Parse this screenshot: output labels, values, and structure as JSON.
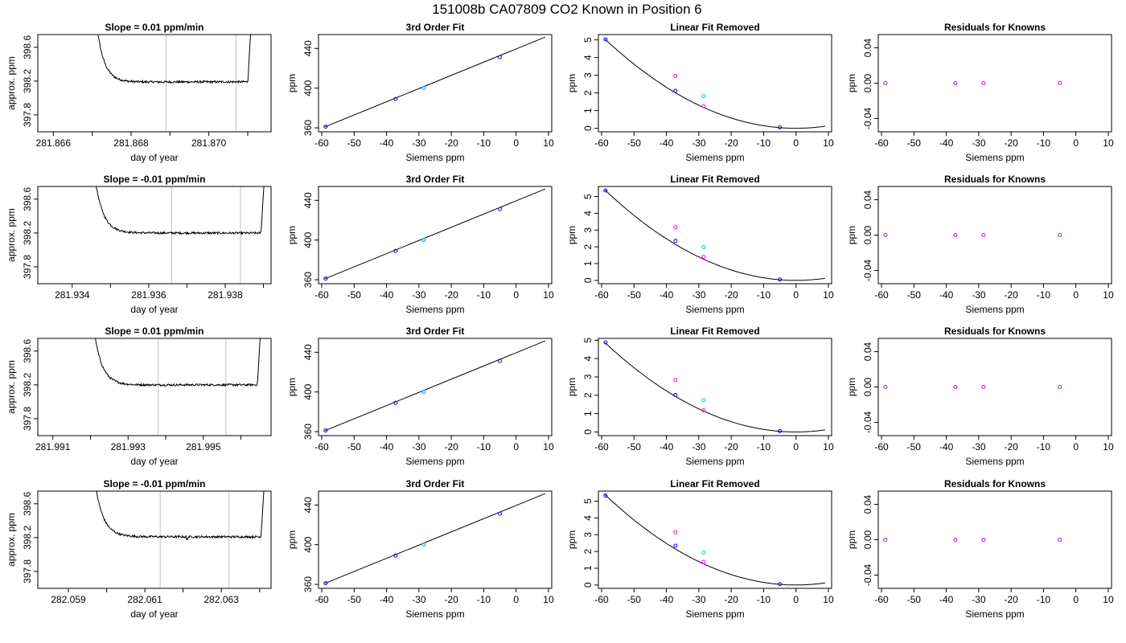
{
  "figure_title": "151008b     CA07809   CO2 Known in Position  6",
  "colors": {
    "curve": "#000000",
    "gridline": "#c0c0c0",
    "blue": "#0000ff",
    "magenta": "#ff00ff",
    "cyan": "#00c8dc",
    "purple": "#9020ff",
    "red": "#ff0000"
  },
  "chart_data": [
    {
      "id": "r1-slope",
      "type": "line",
      "title": "Slope =  0.01  ppm/min",
      "xlabel": "day of year",
      "ylabel": "approx. ppm",
      "xlim": [
        281.8656,
        281.8716
      ],
      "ylim": [
        397.6,
        398.75
      ],
      "xticks": [
        281.866,
        281.867,
        281.868,
        281.869,
        281.87,
        281.871
      ],
      "xtick_labels": [
        "281.866",
        "",
        "281.868",
        "",
        "281.870",
        ""
      ],
      "yticks": [
        397.8,
        398.2,
        398.6
      ],
      "ytick_labels": [
        "397.8",
        "398.2",
        "398.6"
      ],
      "vlines": [
        281.8689,
        281.8707
      ],
      "base": 398.19,
      "drift": 0.01,
      "dips": [],
      "trace_start": 281.86695,
      "trace_end": 281.87115
    },
    {
      "id": "r1-fit",
      "type": "scatter",
      "title": "3rd Order Fit",
      "xlabel": "Siemens ppm",
      "ylabel": "ppm",
      "xlim": [
        -61,
        11
      ],
      "ylim": [
        356,
        454
      ],
      "xticks": [
        -60,
        -50,
        -40,
        -30,
        -20,
        -10,
        0,
        10
      ],
      "xtick_labels": [
        "-60",
        "-50",
        "-40",
        "-30",
        "-20",
        "-10",
        "0",
        "10"
      ],
      "yticks": [
        360,
        400,
        440
      ],
      "ytick_labels": [
        "360",
        "400",
        "440"
      ],
      "line": [
        [
          -59,
          361
        ],
        [
          9,
          451.5
        ]
      ],
      "points": [
        {
          "x": -58.8,
          "y": 361.2,
          "color": "blue"
        },
        {
          "x": -37.2,
          "y": 389.0,
          "color": "blue"
        },
        {
          "x": -28.5,
          "y": 400.2,
          "color": "magenta"
        },
        {
          "x": -28.5,
          "y": 400.2,
          "color": "cyan"
        },
        {
          "x": -5.0,
          "y": 431.2,
          "color": "blue"
        }
      ]
    },
    {
      "id": "r1-linear",
      "type": "scatter",
      "title": "Linear Fit Removed",
      "xlabel": "Siemens ppm",
      "ylabel": "ppm",
      "xlim": [
        -61,
        11
      ],
      "ylim": [
        -0.2,
        5.3
      ],
      "xticks": [
        -60,
        -50,
        -40,
        -30,
        -20,
        -10,
        0,
        10
      ],
      "xtick_labels": [
        "-60",
        "-50",
        "-40",
        "-30",
        "-20",
        "-10",
        "0",
        "10"
      ],
      "yticks": [
        0,
        1,
        2,
        3,
        4,
        5
      ],
      "ytick_labels": [
        "0",
        "1",
        "2",
        "3",
        "4",
        "5"
      ],
      "curve": {
        "x0": -59,
        "x1": 9,
        "a": 0.00145,
        "b": 0,
        "c": 0
      },
      "points": [
        {
          "x": -58.8,
          "y": 5.03,
          "color": "blue"
        },
        {
          "x": -37.2,
          "y": 2.12,
          "color": "blue"
        },
        {
          "x": -37.2,
          "y": 2.96,
          "color": "magenta"
        },
        {
          "x": -28.5,
          "y": 1.82,
          "color": "cyan"
        },
        {
          "x": -28.5,
          "y": 1.25,
          "color": "magenta"
        },
        {
          "x": -5.0,
          "y": 0.05,
          "color": "blue"
        }
      ]
    },
    {
      "id": "r1-resid",
      "type": "scatter",
      "title": "Residuals for Knowns",
      "xlabel": "Siemens ppm",
      "ylabel": "ppm",
      "xlim": [
        -61,
        11
      ],
      "ylim": [
        -0.055,
        0.055
      ],
      "xticks": [
        -60,
        -50,
        -40,
        -30,
        -20,
        -10,
        0,
        10
      ],
      "xtick_labels": [
        "-60",
        "-50",
        "-40",
        "-30",
        "-20",
        "-10",
        "0",
        "10"
      ],
      "yticks": [
        -0.04,
        0.0,
        0.04
      ],
      "ytick_labels": [
        "-0.04",
        "0.00",
        "0.04"
      ],
      "points": [
        {
          "x": -58.8,
          "y": 0.0,
          "color": "purple"
        },
        {
          "x": -37.2,
          "y": 0.0,
          "color": "purple"
        },
        {
          "x": -28.5,
          "y": 0.0,
          "color": "purple"
        },
        {
          "x": -5.0,
          "y": 0.0,
          "color": "purple"
        }
      ]
    },
    {
      "id": "r2-slope",
      "type": "line",
      "title": "Slope =  -0.01  ppm/min",
      "xlabel": "day of year",
      "ylabel": "approx. ppm",
      "xlim": [
        281.9331,
        281.9392
      ],
      "ylim": [
        397.6,
        398.75
      ],
      "xticks": [
        281.934,
        281.935,
        281.936,
        281.937,
        281.938,
        281.939
      ],
      "xtick_labels": [
        "281.934",
        "",
        "281.936",
        "",
        "281.938",
        ""
      ],
      "yticks": [
        397.8,
        398.2,
        398.6
      ],
      "ytick_labels": [
        "397.8",
        "398.2",
        "398.6"
      ],
      "vlines": [
        281.9366,
        281.9384
      ],
      "base": 398.2,
      "drift": -0.01,
      "dips": [],
      "trace_start": 281.9344,
      "trace_end": 281.9391
    },
    {
      "id": "r2-fit",
      "type": "scatter",
      "title": "3rd Order Fit",
      "xlabel": "Siemens ppm",
      "ylabel": "ppm",
      "xlim": [
        -61,
        11
      ],
      "ylim": [
        356,
        454
      ],
      "xticks": [
        -60,
        -50,
        -40,
        -30,
        -20,
        -10,
        0,
        10
      ],
      "xtick_labels": [
        "-60",
        "-50",
        "-40",
        "-30",
        "-20",
        "-10",
        "0",
        "10"
      ],
      "yticks": [
        360,
        400,
        440
      ],
      "ytick_labels": [
        "360",
        "400",
        "440"
      ],
      "line": [
        [
          -59,
          361
        ],
        [
          9,
          451.5
        ]
      ],
      "points": [
        {
          "x": -58.8,
          "y": 361.2,
          "color": "blue"
        },
        {
          "x": -37.2,
          "y": 389.0,
          "color": "blue"
        },
        {
          "x": -28.5,
          "y": 400.2,
          "color": "magenta"
        },
        {
          "x": -28.5,
          "y": 400.2,
          "color": "cyan"
        },
        {
          "x": -5.0,
          "y": 431.2,
          "color": "blue"
        }
      ]
    },
    {
      "id": "r2-linear",
      "type": "scatter",
      "title": "Linear Fit Removed",
      "xlabel": "Siemens ppm",
      "ylabel": "ppm",
      "xlim": [
        -61,
        11
      ],
      "ylim": [
        -0.2,
        5.6
      ],
      "xticks": [
        -60,
        -50,
        -40,
        -30,
        -20,
        -10,
        0,
        10
      ],
      "xtick_labels": [
        "-60",
        "-50",
        "-40",
        "-30",
        "-20",
        "-10",
        "0",
        "10"
      ],
      "yticks": [
        0,
        1,
        2,
        3,
        4,
        5
      ],
      "ytick_labels": [
        "0",
        "1",
        "2",
        "3",
        "4",
        "5"
      ],
      "curve": {
        "x0": -59,
        "x1": 9,
        "a": 0.00155,
        "b": 0,
        "c": 0
      },
      "points": [
        {
          "x": -58.8,
          "y": 5.36,
          "color": "blue"
        },
        {
          "x": -37.2,
          "y": 2.36,
          "color": "blue"
        },
        {
          "x": -37.2,
          "y": 3.17,
          "color": "magenta"
        },
        {
          "x": -28.5,
          "y": 1.98,
          "color": "cyan"
        },
        {
          "x": -28.5,
          "y": 1.4,
          "color": "magenta"
        },
        {
          "x": -5.0,
          "y": 0.05,
          "color": "blue"
        }
      ]
    },
    {
      "id": "r2-resid",
      "type": "scatter",
      "title": "Residuals for Knowns",
      "xlabel": "Siemens ppm",
      "ylabel": "ppm",
      "xlim": [
        -61,
        11
      ],
      "ylim": [
        -0.055,
        0.055
      ],
      "xticks": [
        -60,
        -50,
        -40,
        -30,
        -20,
        -10,
        0,
        10
      ],
      "xtick_labels": [
        "-60",
        "-50",
        "-40",
        "-30",
        "-20",
        "-10",
        "0",
        "10"
      ],
      "yticks": [
        -0.04,
        0.0,
        0.04
      ],
      "ytick_labels": [
        "-0.04",
        "0.00",
        "0.04"
      ],
      "points": [
        {
          "x": -58.8,
          "y": 0.0,
          "color": "purple"
        },
        {
          "x": -37.2,
          "y": 0.0,
          "color": "purple"
        },
        {
          "x": -28.5,
          "y": 0.0,
          "color": "purple"
        },
        {
          "x": -5.0,
          "y": 0.0,
          "color": "purple"
        }
      ]
    },
    {
      "id": "r3-slope",
      "type": "line",
      "title": "Slope =  0.01  ppm/min",
      "xlabel": "day of year",
      "ylabel": "approx. ppm",
      "xlim": [
        281.9906,
        281.9968
      ],
      "ylim": [
        397.6,
        398.75
      ],
      "xticks": [
        281.991,
        281.992,
        281.993,
        281.994,
        281.995,
        281.996
      ],
      "xtick_labels": [
        "281.991",
        "",
        "281.993",
        "",
        "281.995",
        ""
      ],
      "yticks": [
        397.8,
        398.2,
        398.6
      ],
      "ytick_labels": [
        "397.8",
        "398.2",
        "398.6"
      ],
      "vlines": [
        281.9938,
        281.9956
      ],
      "base": 398.2,
      "drift": 0.01,
      "dips": [],
      "trace_start": 281.9919,
      "trace_end": 281.9966
    },
    {
      "id": "r3-fit",
      "type": "scatter",
      "title": "3rd Order Fit",
      "xlabel": "Siemens ppm",
      "ylabel": "ppm",
      "xlim": [
        -61,
        11
      ],
      "ylim": [
        356,
        454
      ],
      "xticks": [
        -60,
        -50,
        -40,
        -30,
        -20,
        -10,
        0,
        10
      ],
      "xtick_labels": [
        "-60",
        "-50",
        "-40",
        "-30",
        "-20",
        "-10",
        "0",
        "10"
      ],
      "yticks": [
        360,
        400,
        440
      ],
      "ytick_labels": [
        "360",
        "400",
        "440"
      ],
      "line": [
        [
          -59,
          361
        ],
        [
          9,
          451.5
        ]
      ],
      "points": [
        {
          "x": -58.8,
          "y": 361.2,
          "color": "blue"
        },
        {
          "x": -37.2,
          "y": 389.0,
          "color": "blue"
        },
        {
          "x": -28.5,
          "y": 400.2,
          "color": "magenta"
        },
        {
          "x": -28.5,
          "y": 400.2,
          "color": "cyan"
        },
        {
          "x": -5.0,
          "y": 431.2,
          "color": "blue"
        }
      ]
    },
    {
      "id": "r3-linear",
      "type": "scatter",
      "title": "Linear Fit Removed",
      "xlabel": "Siemens ppm",
      "ylabel": "ppm",
      "xlim": [
        -61,
        11
      ],
      "ylim": [
        -0.2,
        5.1
      ],
      "xticks": [
        -60,
        -50,
        -40,
        -30,
        -20,
        -10,
        0,
        10
      ],
      "xtick_labels": [
        "-60",
        "-50",
        "-40",
        "-30",
        "-20",
        "-10",
        "0",
        "10"
      ],
      "yticks": [
        0,
        1,
        2,
        3,
        4,
        5
      ],
      "ytick_labels": [
        "0",
        "1",
        "2",
        "3",
        "4",
        "5"
      ],
      "curve": {
        "x0": -59,
        "x1": 9,
        "a": 0.0014,
        "b": 0,
        "c": 0
      },
      "points": [
        {
          "x": -58.8,
          "y": 4.88,
          "color": "blue"
        },
        {
          "x": -37.2,
          "y": 2.02,
          "color": "blue"
        },
        {
          "x": -37.2,
          "y": 2.83,
          "color": "magenta"
        },
        {
          "x": -28.5,
          "y": 1.74,
          "color": "cyan"
        },
        {
          "x": -28.5,
          "y": 1.18,
          "color": "magenta"
        },
        {
          "x": -5.0,
          "y": 0.04,
          "color": "blue"
        }
      ]
    },
    {
      "id": "r3-resid",
      "type": "scatter",
      "title": "Residuals for Knowns",
      "xlabel": "Siemens ppm",
      "ylabel": "ppm",
      "xlim": [
        -61,
        11
      ],
      "ylim": [
        -0.055,
        0.055
      ],
      "xticks": [
        -60,
        -50,
        -40,
        -30,
        -20,
        -10,
        0,
        10
      ],
      "xtick_labels": [
        "-60",
        "-50",
        "-40",
        "-30",
        "-20",
        "-10",
        "0",
        "10"
      ],
      "yticks": [
        -0.04,
        0.0,
        0.04
      ],
      "ytick_labels": [
        "-0.04",
        "0.00",
        "0.04"
      ],
      "points": [
        {
          "x": -58.8,
          "y": 0.0,
          "color": "purple"
        },
        {
          "x": -37.2,
          "y": 0.0,
          "color": "purple"
        },
        {
          "x": -28.5,
          "y": 0.0,
          "color": "purple"
        },
        {
          "x": -5.0,
          "y": 0.0,
          "color": "purple"
        }
      ]
    },
    {
      "id": "r4-slope",
      "type": "line",
      "title": "Slope =  -0.01  ppm/min",
      "xlabel": "day of year",
      "ylabel": "approx. ppm",
      "xlim": [
        282.0582,
        282.0643
      ],
      "ylim": [
        397.6,
        398.75
      ],
      "xticks": [
        282.059,
        282.06,
        282.061,
        282.062,
        282.063,
        282.064
      ],
      "xtick_labels": [
        "282.059",
        "",
        "282.061",
        "",
        "282.063",
        ""
      ],
      "yticks": [
        397.8,
        398.2,
        398.6
      ],
      "ytick_labels": [
        "397.8",
        "398.2",
        "398.6"
      ],
      "vlines": [
        282.0614,
        282.0632
      ],
      "base": 398.21,
      "drift": -0.01,
      "dips": [
        282.0621
      ],
      "trace_start": 282.0595,
      "trace_end": 282.0642
    },
    {
      "id": "r4-fit",
      "type": "scatter",
      "title": "3rd Order Fit",
      "xlabel": "Siemens ppm",
      "ylabel": "ppm",
      "xlim": [
        -61,
        11
      ],
      "ylim": [
        356,
        454
      ],
      "xticks": [
        -60,
        -50,
        -40,
        -30,
        -20,
        -10,
        0,
        10
      ],
      "xtick_labels": [
        "-60",
        "-50",
        "-40",
        "-30",
        "-20",
        "-10",
        "0",
        "10"
      ],
      "yticks": [
        360,
        400,
        440
      ],
      "ytick_labels": [
        "360",
        "400",
        "440"
      ],
      "line": [
        [
          -59,
          361
        ],
        [
          9,
          451.5
        ]
      ],
      "points": [
        {
          "x": -58.8,
          "y": 361.2,
          "color": "blue"
        },
        {
          "x": -37.2,
          "y": 389.0,
          "color": "blue"
        },
        {
          "x": -28.5,
          "y": 400.2,
          "color": "magenta"
        },
        {
          "x": -28.5,
          "y": 400.2,
          "color": "cyan"
        },
        {
          "x": -5.0,
          "y": 431.2,
          "color": "blue"
        }
      ]
    },
    {
      "id": "r4-linear",
      "type": "scatter",
      "title": "Linear Fit Removed",
      "xlabel": "Siemens ppm",
      "ylabel": "ppm",
      "xlim": [
        -61,
        11
      ],
      "ylim": [
        -0.2,
        5.6
      ],
      "xticks": [
        -60,
        -50,
        -40,
        -30,
        -20,
        -10,
        0,
        10
      ],
      "xtick_labels": [
        "-60",
        "-50",
        "-40",
        "-30",
        "-20",
        "-10",
        "0",
        "10"
      ],
      "yticks": [
        0,
        1,
        2,
        3,
        4,
        5
      ],
      "ytick_labels": [
        "0",
        "1",
        "2",
        "3",
        "4",
        "5"
      ],
      "curve": {
        "x0": -59,
        "x1": 9,
        "a": 0.00155,
        "b": 0,
        "c": 0
      },
      "points": [
        {
          "x": -58.8,
          "y": 5.33,
          "color": "blue"
        },
        {
          "x": -37.2,
          "y": 2.34,
          "color": "blue"
        },
        {
          "x": -37.2,
          "y": 3.14,
          "color": "magenta"
        },
        {
          "x": -28.5,
          "y": 1.94,
          "color": "cyan"
        },
        {
          "x": -28.5,
          "y": 1.38,
          "color": "magenta"
        },
        {
          "x": -5.0,
          "y": 0.05,
          "color": "blue"
        }
      ]
    },
    {
      "id": "r4-resid",
      "type": "scatter",
      "title": "Residuals for Knowns",
      "xlabel": "Siemens ppm",
      "ylabel": "ppm",
      "xlim": [
        -61,
        11
      ],
      "ylim": [
        -0.055,
        0.055
      ],
      "xticks": [
        -60,
        -50,
        -40,
        -30,
        -20,
        -10,
        0,
        10
      ],
      "xtick_labels": [
        "-60",
        "-50",
        "-40",
        "-30",
        "-20",
        "-10",
        "0",
        "10"
      ],
      "yticks": [
        -0.04,
        0.0,
        0.04
      ],
      "ytick_labels": [
        "-0.04",
        "0.00",
        "0.04"
      ],
      "points": [
        {
          "x": -58.8,
          "y": 0.0,
          "color": "purple"
        },
        {
          "x": -37.2,
          "y": 0.0,
          "color": "purple"
        },
        {
          "x": -28.5,
          "y": 0.0,
          "color": "purple"
        },
        {
          "x": -5.0,
          "y": 0.0,
          "color": "purple"
        }
      ]
    }
  ]
}
